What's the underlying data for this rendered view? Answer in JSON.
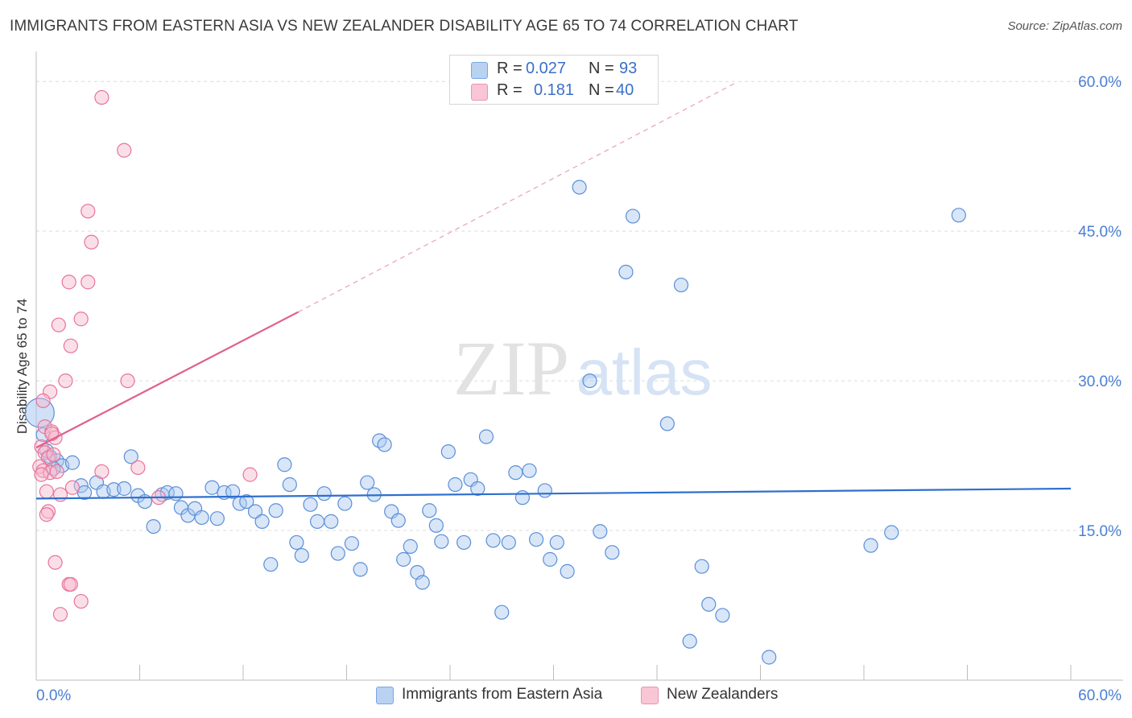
{
  "header": {
    "title": "IMMIGRANTS FROM EASTERN ASIA VS NEW ZEALANDER DISABILITY AGE 65 TO 74 CORRELATION CHART",
    "source": "Source: ZipAtlas.com"
  },
  "watermark": {
    "zip": "ZIP",
    "atlas": "atlas"
  },
  "legend": {
    "rows": [
      {
        "r_label": "R =",
        "r_value": "0.027",
        "n_label": "N =",
        "n_value": "93"
      },
      {
        "r_label": "R =",
        "r_value": "0.181",
        "n_label": "N =",
        "n_value": "40"
      }
    ]
  },
  "bottom_legend": {
    "series1": "Immigrants from Eastern Asia",
    "series2": "New Zealanders"
  },
  "chart_data": {
    "type": "scatter",
    "title": "IMMIGRANTS FROM EASTERN ASIA VS NEW ZEALANDER DISABILITY AGE 65 TO 74 CORRELATION CHART",
    "xlabel": "",
    "ylabel": "Disability Age 65 to 74",
    "xlim": [
      0,
      60
    ],
    "ylim": [
      0,
      63
    ],
    "x_tick_labels": [
      "0.0%",
      "60.0%"
    ],
    "y_ticks": [
      15,
      30,
      45,
      60
    ],
    "y_tick_labels": [
      "15.0%",
      "30.0%",
      "45.0%",
      "60.0%"
    ],
    "grid": true,
    "colors": {
      "blue": "#5b8fd8",
      "blue_fill": "#a9c8f0",
      "pink": "#e8749a",
      "pink_fill": "#f6b7cb"
    },
    "series": [
      {
        "name": "Immigrants from Eastern Asia",
        "color": "#5b8fd8",
        "trend": {
          "x": [
            0,
            60
          ],
          "y": [
            18.2,
            19.2
          ]
        },
        "points": [
          [
            0.2,
            26.8
          ],
          [
            0.4,
            24.6
          ],
          [
            0.8,
            22.4
          ],
          [
            1.2,
            22.0
          ],
          [
            1.5,
            21.5
          ],
          [
            2.1,
            21.8
          ],
          [
            2.6,
            19.5
          ],
          [
            2.8,
            18.8
          ],
          [
            3.5,
            19.8
          ],
          [
            3.9,
            18.9
          ],
          [
            4.5,
            19.1
          ],
          [
            5.1,
            19.2
          ],
          [
            5.5,
            22.4
          ],
          [
            5.9,
            18.5
          ],
          [
            6.3,
            17.9
          ],
          [
            6.8,
            15.4
          ],
          [
            7.3,
            18.6
          ],
          [
            7.6,
            18.8
          ],
          [
            8.1,
            18.7
          ],
          [
            8.4,
            17.3
          ],
          [
            8.8,
            16.5
          ],
          [
            9.2,
            17.2
          ],
          [
            9.6,
            16.3
          ],
          [
            10.2,
            19.3
          ],
          [
            10.5,
            16.2
          ],
          [
            10.9,
            18.8
          ],
          [
            11.4,
            18.9
          ],
          [
            11.8,
            17.7
          ],
          [
            12.2,
            17.9
          ],
          [
            12.7,
            16.9
          ],
          [
            13.1,
            15.9
          ],
          [
            13.6,
            11.6
          ],
          [
            13.9,
            17.0
          ],
          [
            14.4,
            21.6
          ],
          [
            14.7,
            19.6
          ],
          [
            15.1,
            13.8
          ],
          [
            15.4,
            12.5
          ],
          [
            15.9,
            17.6
          ],
          [
            16.3,
            15.9
          ],
          [
            16.7,
            18.7
          ],
          [
            17.1,
            15.9
          ],
          [
            17.5,
            12.7
          ],
          [
            17.9,
            17.7
          ],
          [
            18.3,
            13.7
          ],
          [
            18.8,
            11.1
          ],
          [
            19.2,
            19.8
          ],
          [
            19.6,
            18.6
          ],
          [
            19.9,
            24.0
          ],
          [
            20.2,
            23.6
          ],
          [
            20.6,
            16.9
          ],
          [
            21.0,
            16.0
          ],
          [
            21.3,
            12.1
          ],
          [
            21.7,
            13.4
          ],
          [
            22.1,
            10.8
          ],
          [
            22.4,
            9.8
          ],
          [
            22.8,
            17.0
          ],
          [
            23.2,
            15.5
          ],
          [
            23.5,
            13.9
          ],
          [
            23.9,
            22.9
          ],
          [
            24.3,
            19.6
          ],
          [
            24.8,
            13.8
          ],
          [
            25.2,
            20.1
          ],
          [
            25.6,
            19.2
          ],
          [
            26.1,
            24.4
          ],
          [
            26.5,
            14.0
          ],
          [
            27.0,
            6.8
          ],
          [
            27.4,
            13.8
          ],
          [
            27.8,
            20.8
          ],
          [
            28.2,
            18.3
          ],
          [
            28.6,
            21.0
          ],
          [
            29.0,
            14.1
          ],
          [
            29.5,
            19.0
          ],
          [
            29.8,
            12.1
          ],
          [
            30.2,
            13.8
          ],
          [
            30.8,
            10.9
          ],
          [
            31.5,
            49.4
          ],
          [
            32.1,
            30.0
          ],
          [
            32.7,
            14.9
          ],
          [
            33.4,
            12.8
          ],
          [
            34.2,
            40.9
          ],
          [
            34.6,
            46.5
          ],
          [
            36.6,
            25.7
          ],
          [
            37.4,
            39.6
          ],
          [
            37.9,
            3.9
          ],
          [
            38.6,
            11.4
          ],
          [
            39.0,
            7.6
          ],
          [
            39.8,
            6.5
          ],
          [
            42.5,
            2.3
          ],
          [
            48.4,
            13.5
          ],
          [
            49.6,
            14.8
          ],
          [
            53.5,
            46.6
          ],
          [
            0.6,
            23.0
          ],
          [
            1.0,
            21.2
          ]
        ]
      },
      {
        "name": "New Zealanders",
        "color": "#e8749a",
        "trend": {
          "x": [
            0,
            15.2
          ],
          "y": [
            23.3,
            36.9
          ]
        },
        "trend_extension": {
          "x": [
            15.2,
            40.5
          ],
          "y": [
            36.9,
            59.8
          ]
        },
        "points": [
          [
            3.8,
            58.4
          ],
          [
            5.1,
            53.1
          ],
          [
            3.0,
            47.0
          ],
          [
            3.2,
            43.9
          ],
          [
            1.9,
            39.9
          ],
          [
            3.0,
            39.9
          ],
          [
            2.6,
            36.2
          ],
          [
            1.3,
            35.6
          ],
          [
            2.0,
            33.5
          ],
          [
            1.7,
            30.0
          ],
          [
            5.3,
            30.0
          ],
          [
            0.8,
            28.9
          ],
          [
            0.4,
            28.0
          ],
          [
            0.5,
            25.4
          ],
          [
            0.9,
            24.9
          ],
          [
            1.1,
            24.3
          ],
          [
            0.3,
            23.4
          ],
          [
            0.5,
            22.8
          ],
          [
            0.7,
            22.3
          ],
          [
            0.2,
            21.4
          ],
          [
            0.4,
            21.0
          ],
          [
            0.8,
            20.8
          ],
          [
            1.2,
            20.9
          ],
          [
            0.3,
            20.6
          ],
          [
            3.8,
            20.9
          ],
          [
            5.9,
            21.3
          ],
          [
            12.4,
            20.6
          ],
          [
            2.1,
            19.3
          ],
          [
            0.6,
            18.9
          ],
          [
            1.4,
            18.6
          ],
          [
            7.1,
            18.3
          ],
          [
            0.7,
            16.9
          ],
          [
            0.6,
            16.6
          ],
          [
            1.1,
            11.8
          ],
          [
            1.9,
            9.6
          ],
          [
            2.0,
            9.6
          ],
          [
            2.6,
            7.9
          ],
          [
            1.4,
            6.6
          ],
          [
            0.9,
            24.7
          ],
          [
            1.0,
            22.6
          ]
        ]
      }
    ]
  }
}
